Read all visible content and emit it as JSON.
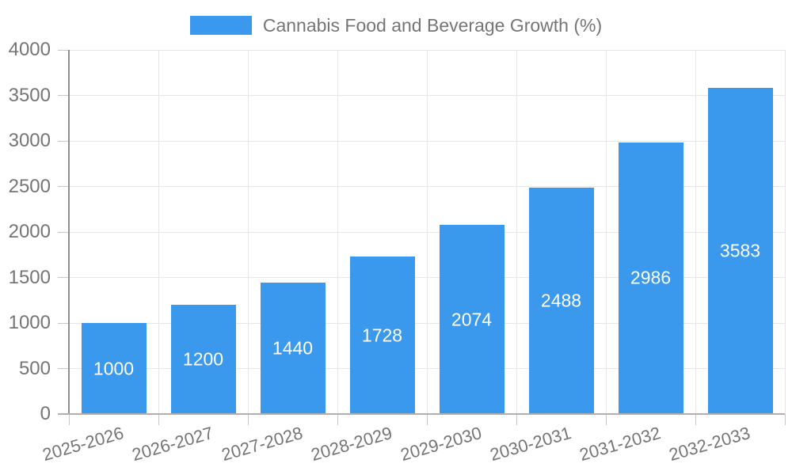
{
  "chart_data": {
    "type": "bar",
    "title": "Cannabis Food and Beverage Growth (%)",
    "legend": {
      "position": "top"
    },
    "categories": [
      "2025-2026",
      "2026-2027",
      "2027-2028",
      "2028-2029",
      "2029-2030",
      "2030-2031",
      "2031-2032",
      "2032-2033"
    ],
    "series": [
      {
        "name": "Cannabis Food and Beverage Growth (%)",
        "values": [
          1000,
          1200,
          1440,
          1728,
          2074,
          2488,
          2986,
          3583
        ]
      }
    ],
    "bar_value_labels": [
      1000,
      1200,
      1440,
      1728,
      2074,
      2488,
      2986,
      3583
    ],
    "xlabel": "",
    "ylabel": "",
    "ylim": [
      0,
      4000
    ],
    "yticks": [
      0,
      500,
      1000,
      1500,
      2000,
      2500,
      3000,
      3500,
      4000
    ],
    "grid": true,
    "colors": {
      "bar": "#3b99ed",
      "grid": "#e6e6e6",
      "tick": "#c6c6c6",
      "y_axis_line": "#8f8f8f",
      "x_axis_line": "#b0b0b0",
      "axis_text": "#757575",
      "value_text": "#ffffff",
      "background": "#ffffff"
    }
  }
}
